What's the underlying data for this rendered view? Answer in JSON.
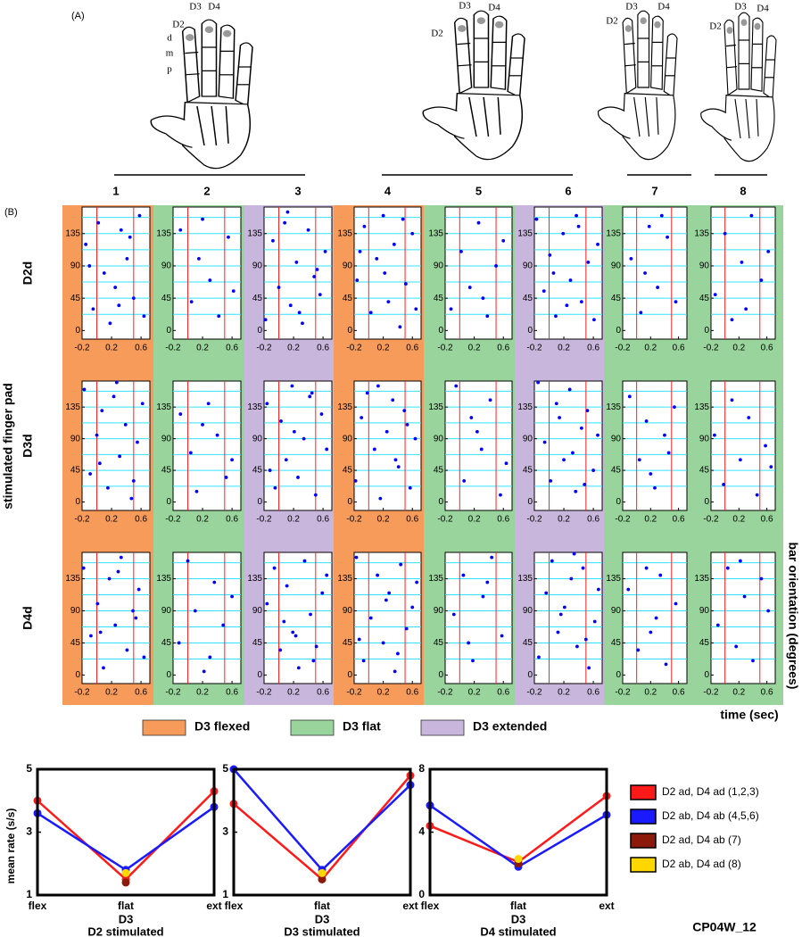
{
  "figure_id": "CP04W_12",
  "hands": {
    "label": "(A)",
    "digits": [
      "D2",
      "D3",
      "D4"
    ],
    "segments": [
      "d",
      "m",
      "p"
    ]
  },
  "chart_data": [
    {
      "type": "raster",
      "panel_label": "(B)",
      "columns": [
        "1",
        "2",
        "3",
        "4",
        "5",
        "6",
        "7",
        "8"
      ],
      "rows": [
        "D2d",
        "D3d",
        "D4d"
      ],
      "ylabel": "stimulated finger pad",
      "y2label": "bar orientation (degrees)",
      "xlabel": "time (sec)",
      "xlim": [
        -0.2,
        0.72
      ],
      "xticks": [
        -0.2,
        0.2,
        0.6
      ],
      "ylim": [
        -12,
        172
      ],
      "yticks": [
        0,
        45,
        90,
        135
      ],
      "vlines": [
        0,
        0.5
      ],
      "hlines": [
        22.5,
        45,
        67.5,
        90,
        112.5,
        135,
        157.5
      ],
      "point_color": "#0000ff",
      "vline_color": "#ff2020",
      "hline_color": "#33e0ff",
      "conditions": [
        {
          "name": "D3 flexed",
          "color": "#f79b5b"
        },
        {
          "name": "D3 flat",
          "color": "#98d49b"
        },
        {
          "name": "D3 extended",
          "color": "#c8b6dc"
        }
      ],
      "column_conditions": [
        0,
        1,
        2,
        0,
        1,
        2,
        1,
        1
      ],
      "panels": [
        [
          {
            "x": [
              -0.15,
              -0.05,
              0.02,
              0.1,
              0.18,
              0.25,
              0.33,
              0.41,
              0.5,
              0.58,
              0.64,
              -0.1,
              0.3,
              0.45
            ],
            "y": [
              120,
              30,
              150,
              80,
              10,
              60,
              140,
              100,
              45,
              160,
              20,
              90,
              35,
              130
            ]
          },
          {
            "x": [
              -0.1,
              0.05,
              0.15,
              0.3,
              0.42,
              0.55,
              0.62,
              0.2
            ],
            "y": [
              140,
              40,
              100,
              70,
              20,
              130,
              55,
              155
            ]
          },
          {
            "x": [
              -0.18,
              -0.08,
              0.0,
              0.08,
              0.16,
              0.24,
              0.32,
              0.4,
              0.48,
              0.56,
              0.63,
              0.12,
              0.28,
              0.52
            ],
            "y": [
              15,
              125,
              60,
              150,
              35,
              95,
              10,
              140,
              75,
              50,
              110,
              165,
              25,
              85
            ]
          },
          {
            "x": [
              -0.16,
              -0.06,
              0.03,
              0.11,
              0.2,
              0.27,
              0.35,
              0.43,
              0.51,
              0.6,
              0.65,
              -0.12,
              0.22,
              0.47
            ],
            "y": [
              70,
              145,
              25,
              100,
              160,
              40,
              120,
              5,
              65,
              135,
              30,
              110,
              80,
              155
            ]
          },
          {
            "x": [
              -0.12,
              0.02,
              0.14,
              0.26,
              0.38,
              0.5,
              0.6,
              0.32
            ],
            "y": [
              30,
              110,
              60,
              150,
              20,
              90,
              125,
              45
            ]
          },
          {
            "x": [
              -0.17,
              -0.07,
              0.01,
              0.09,
              0.19,
              0.29,
              0.37,
              0.44,
              0.53,
              0.61,
              0.66,
              0.06,
              0.24,
              0.4
            ],
            "y": [
              155,
              55,
              105,
              20,
              135,
              70,
              160,
              40,
              95,
              15,
              120,
              80,
              35,
              145
            ]
          },
          {
            "x": [
              -0.08,
              0.06,
              0.18,
              0.3,
              0.44,
              0.56,
              0.12,
              0.36
            ],
            "y": [
              100,
              25,
              145,
              60,
              130,
              40,
              80,
              160
            ]
          },
          {
            "x": [
              -0.14,
              0.0,
              0.1,
              0.24,
              0.38,
              0.52,
              0.62,
              0.3
            ],
            "y": [
              50,
              135,
              15,
              95,
              160,
              70,
              110,
              30
            ]
          }
        ],
        [
          {
            "x": [
              -0.17,
              -0.09,
              0.0,
              0.07,
              0.15,
              0.23,
              0.31,
              0.39,
              0.47,
              0.55,
              0.62,
              0.04,
              0.27,
              0.5
            ],
            "y": [
              160,
              40,
              95,
              130,
              20,
              150,
              65,
              110,
              5,
              85,
              140,
              55,
              170,
              30
            ]
          },
          {
            "x": [
              -0.1,
              0.04,
              0.12,
              0.28,
              0.4,
              0.52,
              0.6,
              0.2
            ],
            "y": [
              125,
              70,
              15,
              140,
              95,
              35,
              60,
              110
            ]
          },
          {
            "x": [
              -0.16,
              -0.05,
              0.03,
              0.1,
              0.18,
              0.26,
              0.34,
              0.42,
              0.5,
              0.58,
              0.65,
              -0.12,
              0.21,
              0.45
            ],
            "y": [
              140,
              20,
              115,
              60,
              165,
              35,
              90,
              150,
              10,
              125,
              75,
              45,
              100,
              155
            ]
          },
          {
            "x": [
              -0.18,
              -0.1,
              -0.02,
              0.08,
              0.16,
              0.25,
              0.33,
              0.41,
              0.49,
              0.57,
              0.64,
              0.13,
              0.37,
              0.53
            ],
            "y": [
              30,
              120,
              155,
              75,
              5,
              100,
              145,
              50,
              130,
              20,
              90,
              165,
              60,
              110
            ]
          },
          {
            "x": [
              -0.05,
              0.06,
              0.16,
              0.3,
              0.42,
              0.56,
              0.64,
              0.24
            ],
            "y": [
              165,
              30,
              120,
              75,
              145,
              10,
              55,
              100
            ]
          },
          {
            "x": [
              -0.15,
              -0.06,
              0.02,
              0.1,
              0.2,
              0.28,
              0.36,
              0.44,
              0.52,
              0.6,
              0.66,
              0.14,
              0.32,
              0.48
            ],
            "y": [
              170,
              85,
              30,
              140,
              60,
              160,
              15,
              105,
              130,
              45,
              95,
              120,
              70,
              25
            ]
          },
          {
            "x": [
              -0.1,
              0.04,
              0.14,
              0.26,
              0.4,
              0.54,
              0.2,
              0.46
            ],
            "y": [
              150,
              60,
              115,
              20,
              95,
              135,
              40,
              70
            ]
          },
          {
            "x": [
              -0.15,
              -0.02,
              0.1,
              0.22,
              0.34,
              0.46,
              0.58,
              0.66
            ],
            "y": [
              95,
              25,
              145,
              60,
              120,
              10,
              80,
              50
            ]
          }
        ],
        [
          {
            "x": [
              -0.18,
              -0.08,
              0.01,
              0.09,
              0.17,
              0.25,
              0.33,
              0.41,
              0.49,
              0.57,
              0.64,
              0.05,
              0.29,
              0.53
            ],
            "y": [
              150,
              55,
              100,
              10,
              135,
              70,
              165,
              35,
              90,
              120,
              25,
              60,
              145,
              80
            ]
          },
          {
            "x": [
              -0.12,
              0.0,
              0.1,
              0.22,
              0.36,
              0.48,
              0.6,
              0.3
            ],
            "y": [
              45,
              160,
              90,
              5,
              130,
              70,
              110,
              25
            ]
          },
          {
            "x": [
              -0.16,
              -0.06,
              0.02,
              0.11,
              0.19,
              0.27,
              0.35,
              0.43,
              0.51,
              0.59,
              0.65,
              0.07,
              0.23,
              0.47
            ],
            "y": [
              100,
              150,
              35,
              125,
              60,
              10,
              160,
              85,
              40,
              115,
              140,
              75,
              55,
              20
            ]
          },
          {
            "x": [
              -0.17,
              -0.07,
              0.03,
              0.12,
              0.2,
              0.28,
              0.36,
              0.44,
              0.52,
              0.6,
              0.66,
              -0.13,
              0.24,
              0.4
            ],
            "y": [
              165,
              20,
              80,
              140,
              45,
              115,
              5,
              155,
              65,
              95,
              130,
              50,
              105,
              30
            ]
          },
          {
            "x": [
              -0.08,
              0.05,
              0.18,
              0.32,
              0.44,
              0.58,
              0.12,
              0.38
            ],
            "y": [
              85,
              140,
              20,
              110,
              165,
              55,
              45,
              130
            ]
          },
          {
            "x": [
              -0.14,
              -0.04,
              0.04,
              0.12,
              0.21,
              0.3,
              0.38,
              0.46,
              0.54,
              0.62,
              0.67,
              0.16,
              0.34,
              0.5
            ],
            "y": [
              25,
              115,
              160,
              60,
              95,
              135,
              40,
              150,
              10,
              75,
              120,
              85,
              170,
              50
            ]
          },
          {
            "x": [
              -0.12,
              0.02,
              0.14,
              0.28,
              0.42,
              0.56,
              0.2,
              0.34
            ],
            "y": [
              120,
              35,
              150,
              80,
              15,
              100,
              60,
              140
            ]
          },
          {
            "x": [
              -0.1,
              0.04,
              0.16,
              0.28,
              0.4,
              0.52,
              0.62,
              0.22
            ],
            "y": [
              70,
              150,
              40,
              110,
              20,
              135,
              90,
              160
            ]
          }
        ]
      ]
    },
    {
      "type": "line",
      "title": "D2 stimulated",
      "xlabel": "D3",
      "ylabel": "mean rate (s/s)",
      "categories": [
        "flex",
        "flat",
        "ext"
      ],
      "ylim": [
        1,
        5
      ],
      "yticks": [
        1,
        3,
        5
      ],
      "series": [
        {
          "name": "D2 ad, D4 ad (1,2,3)",
          "color": "#ff1a1a",
          "values": [
            4.0,
            1.5,
            4.3
          ]
        },
        {
          "name": "D2 ab, D4 ab (4,5,6)",
          "color": "#1a1aff",
          "values": [
            3.6,
            1.8,
            3.8
          ]
        },
        {
          "name": "D2 ad, D4 ab (7)",
          "color": "#8b1a0a",
          "values": [
            null,
            1.4,
            null
          ]
        },
        {
          "name": "D2 ab, D4 ad (8)",
          "color": "#ffd700",
          "values": [
            null,
            1.7,
            null
          ]
        }
      ]
    },
    {
      "type": "line",
      "title": "D3 stimulated",
      "xlabel": "D3",
      "categories": [
        "flex",
        "flat",
        "ext"
      ],
      "ylim": [
        1,
        5
      ],
      "yticks": [
        1,
        3,
        5
      ],
      "series": [
        {
          "values": [
            3.9,
            1.5,
            4.8
          ]
        },
        {
          "values": [
            5.0,
            1.8,
            4.5
          ]
        },
        {
          "values": [
            null,
            1.5,
            null
          ]
        },
        {
          "values": [
            null,
            1.7,
            null
          ]
        }
      ]
    },
    {
      "type": "line",
      "title": "D4 stimulated",
      "xlabel": "D3",
      "categories": [
        "flex",
        "flat",
        "ext"
      ],
      "ylim": [
        0,
        8
      ],
      "yticks": [
        0,
        4,
        8
      ],
      "series": [
        {
          "values": [
            4.4,
            2.1,
            6.3
          ]
        },
        {
          "values": [
            5.7,
            1.8,
            5.1
          ]
        },
        {
          "values": [
            null,
            2.0,
            null
          ]
        },
        {
          "values": [
            null,
            2.3,
            null
          ]
        }
      ]
    }
  ]
}
